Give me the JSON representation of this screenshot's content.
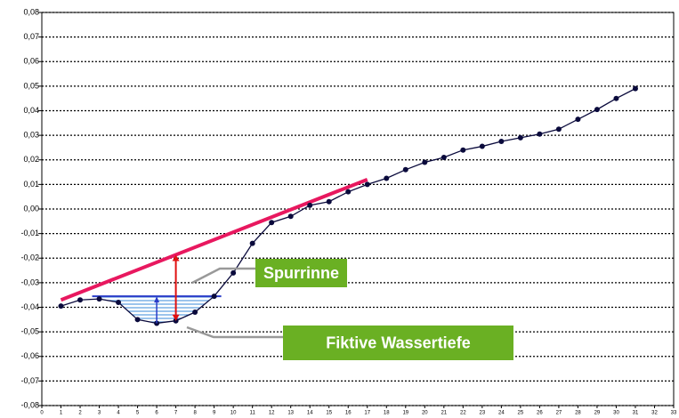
{
  "chart_data": {
    "type": "line",
    "x": [
      1,
      2,
      3,
      4,
      5,
      6,
      7,
      8,
      9,
      10,
      11,
      12,
      13,
      14,
      15,
      16,
      17,
      18,
      19,
      20,
      21,
      22,
      23,
      24,
      25,
      26,
      27,
      28,
      29,
      30,
      31
    ],
    "series": [
      {
        "color": "#0a0a3c",
        "values": [
          -0.0395,
          -0.037,
          -0.0366,
          -0.038,
          -0.045,
          -0.0465,
          -0.0455,
          -0.042,
          -0.0355,
          -0.026,
          -0.014,
          -0.0055,
          -0.003,
          0.0015,
          0.003,
          0.007,
          0.01,
          0.0125,
          0.016,
          0.019,
          0.021,
          0.024,
          0.0255,
          0.0275,
          0.029,
          0.0305,
          0.0325,
          0.0365,
          0.0405,
          0.045,
          0.049
        ]
      }
    ],
    "reference_line": {
      "x": [
        1,
        17
      ],
      "values": [
        -0.037,
        0.012
      ],
      "color": "#e8185f"
    },
    "water": {
      "x": [
        3,
        9
      ],
      "level": -0.0355,
      "color": "#2a3cc8"
    },
    "annotations": [
      {
        "text": "Spurrinne",
        "color": "#6ab023"
      },
      {
        "text": "Fiktive Wassertiefe",
        "color": "#6ab023"
      }
    ],
    "xlim": [
      0,
      33
    ],
    "xticks": [
      0,
      1,
      2,
      3,
      4,
      5,
      6,
      7,
      8,
      9,
      10,
      11,
      12,
      13,
      14,
      15,
      16,
      17,
      18,
      19,
      20,
      21,
      22,
      23,
      24,
      25,
      26,
      27,
      28,
      29,
      30,
      31,
      32,
      33
    ],
    "ylim": [
      -0.08,
      0.08
    ],
    "yticks": [
      {
        "value": -0.08,
        "label": "-0,08"
      },
      {
        "value": -0.07,
        "label": "-0,07"
      },
      {
        "value": -0.06,
        "label": "-0,06"
      },
      {
        "value": -0.05,
        "label": "-0,05"
      },
      {
        "value": -0.04,
        "label": "-0,04"
      },
      {
        "value": -0.03,
        "label": "-0,03"
      },
      {
        "value": -0.02,
        "label": "-0,02"
      },
      {
        "value": -0.01,
        "label": "-0,01"
      },
      {
        "value": 0,
        "label": "0,00"
      },
      {
        "value": 0.01,
        "label": "0,01"
      },
      {
        "value": 0.02,
        "label": "0,02"
      },
      {
        "value": 0.03,
        "label": "0,03"
      },
      {
        "value": 0.04,
        "label": "0,04"
      },
      {
        "value": 0.05,
        "label": "0,05"
      },
      {
        "value": 0.06,
        "label": "0,06"
      },
      {
        "value": 0.07,
        "label": "0,07"
      },
      {
        "value": 0.08,
        "label": "0,08"
      }
    ],
    "grid": true
  }
}
